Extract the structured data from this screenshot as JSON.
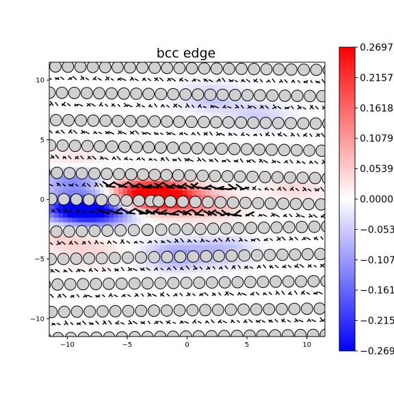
{
  "chart_data": {
    "type": "heatmap",
    "title": "bcc edge",
    "xlabel": "",
    "ylabel": "",
    "xlim": [
      -11.5,
      11.5
    ],
    "ylim": [
      -11.5,
      11.5
    ],
    "x_ticks": [
      -10,
      -5,
      0,
      5,
      10
    ],
    "x_tick_labels": [
      "−10",
      "−5",
      "0",
      "5",
      "10"
    ],
    "y_ticks": [
      10,
      5,
      0,
      -5,
      -10
    ],
    "y_tick_labels": [
      "10",
      "5",
      "0",
      "−5",
      "−10"
    ],
    "grid": false,
    "colormap": "bwr",
    "colorbar": {
      "vmin": -0.2697,
      "vmax": 0.2697,
      "ticks": [
        0.2697,
        0.2157,
        0.1618,
        0.1079,
        0.0539,
        0.0,
        -0.0539,
        -0.1079,
        -0.1618,
        -0.2157,
        -0.2697
      ],
      "tick_labels": [
        "0.2697",
        "0.2157",
        "0.1618",
        "0.1079",
        "0.0539",
        "0.0000",
        "−0.0539",
        "−0.1079",
        "−0.1618",
        "−0.2157",
        "−0.2697"
      ]
    },
    "dislocation_core": [
      -3,
      -0.5
    ],
    "atom_rows_y": [
      11,
      8.8,
      6.5,
      4.3,
      2.0,
      -0.2,
      -2.5,
      -4.8,
      -7.0,
      -9.3,
      -11.5
    ],
    "atom_spacing": 1.05,
    "field_sources": [
      {
        "x": -9.5,
        "y": -0.8,
        "value": -0.27
      },
      {
        "x": -7.0,
        "y": -1.0,
        "value": -0.2
      },
      {
        "x": -9.5,
        "y": 1.8,
        "value": -0.15
      },
      {
        "x": -1.5,
        "y": 0.2,
        "value": 0.27
      },
      {
        "x": -4.0,
        "y": 0.5,
        "value": 0.22
      },
      {
        "x": 2.0,
        "y": -0.5,
        "value": 0.08
      },
      {
        "x": -9.5,
        "y": 2.8,
        "value": 0.07
      },
      {
        "x": -10.5,
        "y": -3.0,
        "value": 0.05
      },
      {
        "x": -1.0,
        "y": -4.7,
        "value": -0.1
      },
      {
        "x": 3.0,
        "y": -4.3,
        "value": -0.07
      },
      {
        "x": -8.0,
        "y": -4.5,
        "value": 0.04
      },
      {
        "x": 2.0,
        "y": 8.5,
        "value": -0.06
      },
      {
        "x": 6.0,
        "y": 7.0,
        "value": -0.05
      },
      {
        "x": 9.0,
        "y": 1.0,
        "value": 0.04
      }
    ],
    "colors": {
      "low": "#0000ff",
      "mid": "#ffffff",
      "high": "#ff0000",
      "atom_fill": "#d0d0d0",
      "atom_stroke": "#000000",
      "arrow": "#000000"
    }
  }
}
